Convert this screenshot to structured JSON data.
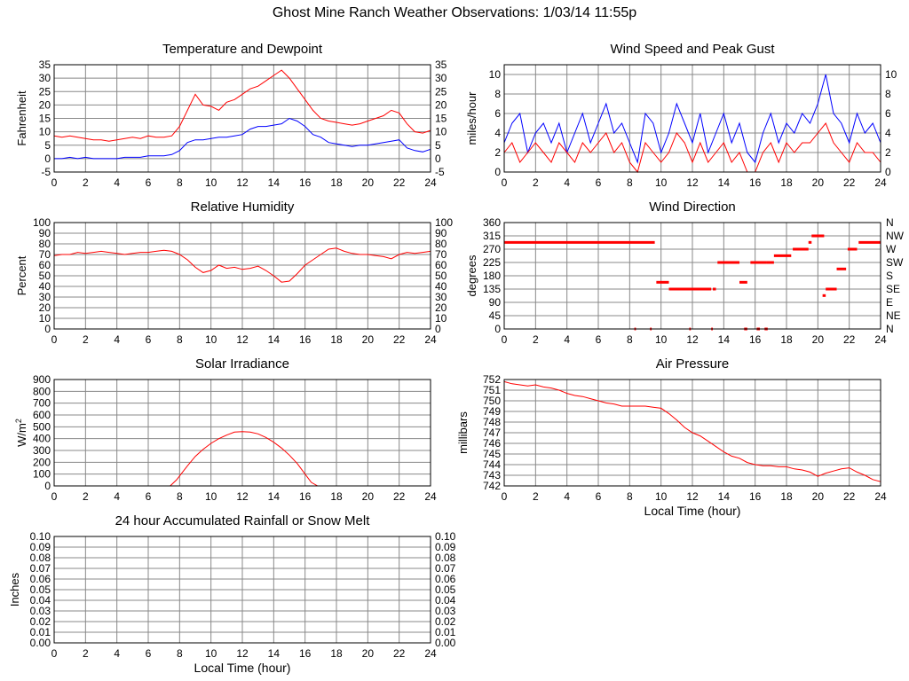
{
  "page": {
    "title": "Ghost Mine Ranch Weather Observations: 1/03/14 11:55p"
  },
  "colors": {
    "red": "#ff0000",
    "blue": "#0000ff",
    "grid": "#888888",
    "axis": "#000000"
  },
  "chart_data": [
    {
      "id": "temperature",
      "type": "line",
      "title": "Temperature and Dewpoint",
      "ylabel": "Fahrenheit",
      "xlabel": "",
      "xlim": [
        0,
        24
      ],
      "ylim": [
        -5,
        35
      ],
      "xticks": [
        "0",
        "2",
        "4",
        "6",
        "8",
        "10",
        "12",
        "14",
        "16",
        "18",
        "20",
        "22",
        "24"
      ],
      "yticks": [
        "-5",
        "0",
        "5",
        "10",
        "15",
        "20",
        "25",
        "30",
        "35"
      ],
      "right_axis": true,
      "grid": true,
      "series": [
        {
          "color": "#ff0000",
          "x": [
            0,
            0.5,
            1,
            1.5,
            2,
            2.5,
            3,
            3.5,
            4,
            4.5,
            5,
            5.5,
            6,
            6.5,
            7,
            7.5,
            8,
            8.5,
            9,
            9.5,
            10,
            10.5,
            11,
            11.5,
            12,
            12.5,
            13,
            13.5,
            14,
            14.5,
            15,
            15.5,
            16,
            16.5,
            17,
            17.5,
            18,
            18.5,
            19,
            19.5,
            20,
            20.5,
            21,
            21.5,
            22,
            22.5,
            23,
            23.5,
            24
          ],
          "y": [
            8.5,
            8,
            8.5,
            8,
            7.5,
            7,
            7,
            6.5,
            7,
            7.5,
            8,
            7.5,
            8.5,
            8,
            8,
            8.5,
            12,
            18,
            24,
            20,
            19.5,
            18,
            21,
            22,
            24,
            26,
            27,
            29,
            31,
            33,
            30,
            26,
            22,
            18,
            15,
            14,
            13.5,
            13,
            12.5,
            13,
            14,
            15,
            16,
            18,
            17,
            13,
            10,
            9.5,
            10.5
          ]
        },
        {
          "color": "#0000ff",
          "x": [
            0,
            0.5,
            1,
            1.5,
            2,
            2.5,
            3,
            3.5,
            4,
            4.5,
            5,
            5.5,
            6,
            6.5,
            7,
            7.5,
            8,
            8.5,
            9,
            9.5,
            10,
            10.5,
            11,
            11.5,
            12,
            12.5,
            13,
            13.5,
            14,
            14.5,
            15,
            15.5,
            16,
            16.5,
            17,
            17.5,
            18,
            18.5,
            19,
            19.5,
            20,
            20.5,
            21,
            21.5,
            22,
            22.5,
            23,
            23.5,
            24
          ],
          "y": [
            0,
            0,
            0.5,
            0,
            0.5,
            0,
            0,
            0,
            0,
            0.5,
            0.5,
            0.5,
            1,
            1,
            1,
            1.5,
            3,
            6,
            7,
            7,
            7.5,
            8,
            8,
            8.5,
            9,
            11,
            12,
            12,
            12.5,
            13,
            15,
            14,
            12,
            9,
            8,
            6,
            5.5,
            5,
            4.5,
            5,
            5,
            5.5,
            6,
            6.5,
            7,
            4,
            3,
            2.5,
            3.5
          ]
        }
      ]
    },
    {
      "id": "wind-speed",
      "type": "line",
      "title": "Wind Speed and Peak Gust",
      "ylabel": "miles/hour",
      "xlabel": "",
      "xlim": [
        0,
        24
      ],
      "ylim": [
        0,
        11
      ],
      "xticks": [
        "0",
        "2",
        "4",
        "6",
        "8",
        "10",
        "12",
        "14",
        "16",
        "18",
        "20",
        "22",
        "24"
      ],
      "yticks": [
        "0",
        "2",
        "4",
        "6",
        "8",
        "10"
      ],
      "right_axis": true,
      "grid": true,
      "series": [
        {
          "color": "#0000ff",
          "x": [
            0,
            0.5,
            1,
            1.5,
            2,
            2.5,
            3,
            3.5,
            4,
            4.5,
            5,
            5.5,
            6,
            6.5,
            7,
            7.5,
            8,
            8.5,
            9,
            9.5,
            10,
            10.5,
            11,
            11.5,
            12,
            12.5,
            13,
            13.5,
            14,
            14.5,
            15,
            15.5,
            16,
            16.5,
            17,
            17.5,
            18,
            18.5,
            19,
            19.5,
            20,
            20.5,
            21,
            21.5,
            22,
            22.5,
            23,
            23.5,
            24
          ],
          "y": [
            3,
            5,
            6,
            2,
            4,
            5,
            3,
            5,
            2,
            4,
            6,
            3,
            5,
            7,
            4,
            5,
            3,
            1,
            6,
            5,
            2,
            4,
            7,
            5,
            3,
            6,
            2,
            4,
            6,
            3,
            5,
            2,
            1,
            4,
            6,
            3,
            5,
            4,
            6,
            5,
            7,
            10,
            6,
            5,
            3,
            6,
            4,
            5,
            3
          ]
        },
        {
          "color": "#ff0000",
          "x": [
            0,
            0.5,
            1,
            1.5,
            2,
            2.5,
            3,
            3.5,
            4,
            4.5,
            5,
            5.5,
            6,
            6.5,
            7,
            7.5,
            8,
            8.5,
            9,
            9.5,
            10,
            10.5,
            11,
            11.5,
            12,
            12.5,
            13,
            13.5,
            14,
            14.5,
            15,
            15.5,
            16,
            16.5,
            17,
            17.5,
            18,
            18.5,
            19,
            19.5,
            20,
            20.5,
            21,
            21.5,
            22,
            22.5,
            23,
            23.5,
            24
          ],
          "y": [
            2,
            3,
            1,
            2,
            3,
            2,
            1,
            3,
            2,
            1,
            3,
            2,
            3,
            4,
            2,
            3,
            1,
            0,
            3,
            2,
            1,
            2,
            4,
            3,
            1,
            3,
            1,
            2,
            3,
            1,
            2,
            0,
            0,
            2,
            3,
            1,
            3,
            2,
            3,
            3,
            4,
            5,
            3,
            2,
            1,
            3,
            2,
            2,
            1
          ]
        }
      ]
    },
    {
      "id": "humidity",
      "type": "line",
      "title": "Relative Humidity",
      "ylabel": "Percent",
      "xlabel": "",
      "xlim": [
        0,
        24
      ],
      "ylim": [
        0,
        100
      ],
      "xticks": [
        "0",
        "2",
        "4",
        "6",
        "8",
        "10",
        "12",
        "14",
        "16",
        "18",
        "20",
        "22",
        "24"
      ],
      "yticks": [
        "0",
        "10",
        "20",
        "30",
        "40",
        "50",
        "60",
        "70",
        "80",
        "90",
        "100"
      ],
      "right_axis": true,
      "grid": true,
      "series": [
        {
          "color": "#ff0000",
          "x": [
            0,
            0.5,
            1,
            1.5,
            2,
            2.5,
            3,
            3.5,
            4,
            4.5,
            5,
            5.5,
            6,
            6.5,
            7,
            7.5,
            8,
            8.5,
            9,
            9.5,
            10,
            10.5,
            11,
            11.5,
            12,
            12.5,
            13,
            13.5,
            14,
            14.5,
            15,
            15.5,
            16,
            16.5,
            17,
            17.5,
            18,
            18.5,
            19,
            19.5,
            20,
            20.5,
            21,
            21.5,
            22,
            22.5,
            23,
            23.5,
            24
          ],
          "y": [
            69,
            70,
            70,
            72,
            71,
            72,
            73,
            72,
            71,
            70,
            71,
            72,
            72,
            73,
            74,
            73,
            70,
            65,
            58,
            53,
            55,
            60,
            57,
            58,
            56,
            57,
            59,
            55,
            50,
            44,
            45,
            52,
            60,
            65,
            70,
            75,
            76,
            73,
            71,
            70,
            70,
            69,
            68,
            66,
            70,
            72,
            71,
            72,
            73
          ]
        }
      ]
    },
    {
      "id": "wind-direction",
      "type": "scatter",
      "title": "Wind Direction",
      "ylabel": "degrees",
      "xlabel": "",
      "xlim": [
        0,
        24
      ],
      "ylim": [
        0,
        360
      ],
      "xticks": [
        "0",
        "2",
        "4",
        "6",
        "8",
        "10",
        "12",
        "14",
        "16",
        "18",
        "20",
        "22",
        "24"
      ],
      "yticks": [
        "0",
        "45",
        "90",
        "135",
        "180",
        "225",
        "270",
        "315",
        "360"
      ],
      "right_ticks": [
        "N",
        "NE",
        "E",
        "SE",
        "S",
        "SW",
        "W",
        "NW",
        "N"
      ],
      "grid": true,
      "segments": [
        {
          "x0": 0,
          "x1": 9.6,
          "y": 293
        },
        {
          "x0": 9.7,
          "x1": 10.5,
          "y": 158
        },
        {
          "x0": 10.5,
          "x1": 13.2,
          "y": 135
        },
        {
          "x0": 13.3,
          "x1": 13.5,
          "y": 135
        },
        {
          "x0": 13.6,
          "x1": 15,
          "y": 225
        },
        {
          "x0": 15,
          "x1": 15.5,
          "y": 158
        },
        {
          "x0": 15.7,
          "x1": 16.7,
          "y": 225
        },
        {
          "x0": 16.7,
          "x1": 17.2,
          "y": 225
        },
        {
          "x0": 17.2,
          "x1": 18.3,
          "y": 248
        },
        {
          "x0": 18.4,
          "x1": 19.4,
          "y": 270
        },
        {
          "x0": 19.4,
          "x1": 19.6,
          "y": 293
        },
        {
          "x0": 19.6,
          "x1": 20.4,
          "y": 315
        },
        {
          "x0": 20.3,
          "x1": 20.5,
          "y": 113
        },
        {
          "x0": 20.5,
          "x1": 21.2,
          "y": 135
        },
        {
          "x0": 21.2,
          "x1": 21.8,
          "y": 203
        },
        {
          "x0": 21.9,
          "x1": 22.5,
          "y": 270
        },
        {
          "x0": 22.6,
          "x1": 24,
          "y": 293
        },
        {
          "x0": 8.3,
          "x1": 8.4,
          "y": 0
        },
        {
          "x0": 9.3,
          "x1": 9.4,
          "y": 0
        },
        {
          "x0": 11.8,
          "x1": 11.9,
          "y": 0
        },
        {
          "x0": 13.2,
          "x1": 13.3,
          "y": 0
        },
        {
          "x0": 15.3,
          "x1": 15.5,
          "y": 0
        },
        {
          "x0": 16.1,
          "x1": 16.3,
          "y": 0
        },
        {
          "x0": 16.6,
          "x1": 16.8,
          "y": 0
        }
      ]
    },
    {
      "id": "solar",
      "type": "area",
      "title": "Solar Irradiance",
      "ylabel": "W/m2",
      "xlabel": "",
      "xlim": [
        0,
        24
      ],
      "ylim": [
        0,
        900
      ],
      "xticks": [
        "0",
        "2",
        "4",
        "6",
        "8",
        "10",
        "12",
        "14",
        "16",
        "18",
        "20",
        "22",
        "24"
      ],
      "yticks": [
        "0",
        "100",
        "200",
        "300",
        "400",
        "500",
        "600",
        "700",
        "800",
        "900"
      ],
      "right_axis": false,
      "grid": true,
      "series": [
        {
          "color": "#ff0000",
          "x": [
            0,
            7.4,
            7.8,
            8.5,
            9,
            9.5,
            10,
            10.5,
            11,
            11.5,
            12,
            12.5,
            13,
            13.5,
            14,
            14.5,
            15,
            15.5,
            16,
            16.4,
            16.8,
            24
          ],
          "y": [
            0,
            0,
            50,
            170,
            250,
            310,
            360,
            400,
            430,
            455,
            460,
            455,
            440,
            410,
            370,
            320,
            260,
            190,
            100,
            30,
            0,
            0
          ]
        }
      ]
    },
    {
      "id": "pressure",
      "type": "line",
      "title": "Air Pressure",
      "ylabel": "millibars",
      "xlabel": "Local Time (hour)",
      "xlim": [
        0,
        24
      ],
      "ylim": [
        742,
        752
      ],
      "xticks": [
        "0",
        "2",
        "4",
        "6",
        "8",
        "10",
        "12",
        "14",
        "16",
        "18",
        "20",
        "22",
        "24"
      ],
      "yticks": [
        "742",
        "743",
        "744",
        "745",
        "746",
        "747",
        "748",
        "749",
        "750",
        "751",
        "752"
      ],
      "right_axis": false,
      "grid": true,
      "series": [
        {
          "color": "#ff0000",
          "x": [
            0,
            0.5,
            1,
            1.5,
            2,
            2.5,
            3,
            3.5,
            4,
            4.5,
            5,
            5.5,
            6,
            6.5,
            7,
            7.5,
            8,
            8.5,
            9,
            9.5,
            10,
            10.5,
            11,
            11.5,
            12,
            12.5,
            13,
            13.5,
            14,
            14.5,
            15,
            15.5,
            16,
            16.5,
            17,
            17.5,
            18,
            18.5,
            19,
            19.5,
            20,
            20.5,
            21,
            21.5,
            22,
            22.5,
            23,
            23.5,
            24
          ],
          "y": [
            751.8,
            751.6,
            751.5,
            751.4,
            751.5,
            751.3,
            751.2,
            751.0,
            750.7,
            750.5,
            750.4,
            750.2,
            750.0,
            749.8,
            749.7,
            749.5,
            749.5,
            749.5,
            749.5,
            749.4,
            749.3,
            748.8,
            748.2,
            747.5,
            747.0,
            746.7,
            746.2,
            745.7,
            745.2,
            744.8,
            744.6,
            744.2,
            744.0,
            743.9,
            743.9,
            743.8,
            743.8,
            743.6,
            743.5,
            743.3,
            742.9,
            743.2,
            743.4,
            743.6,
            743.7,
            743.3,
            743.0,
            742.6,
            742.4
          ]
        }
      ]
    },
    {
      "id": "rainfall",
      "type": "line",
      "title": "24 hour Accumulated Rainfall or Snow Melt",
      "ylabel": "Inches",
      "xlabel": "Local Time (hour)",
      "xlim": [
        0,
        24
      ],
      "ylim": [
        0,
        0.1
      ],
      "xticks": [
        "0",
        "2",
        "4",
        "6",
        "8",
        "10",
        "12",
        "14",
        "16",
        "18",
        "20",
        "22",
        "24"
      ],
      "yticks": [
        "0.00",
        "0.01",
        "0.02",
        "0.03",
        "0.04",
        "0.05",
        "0.06",
        "0.07",
        "0.08",
        "0.09",
        "0.10"
      ],
      "right_axis": true,
      "grid": true,
      "series": [
        {
          "color": "#ff0000",
          "x": [
            0,
            24
          ],
          "y": [
            0,
            0
          ]
        }
      ]
    }
  ]
}
